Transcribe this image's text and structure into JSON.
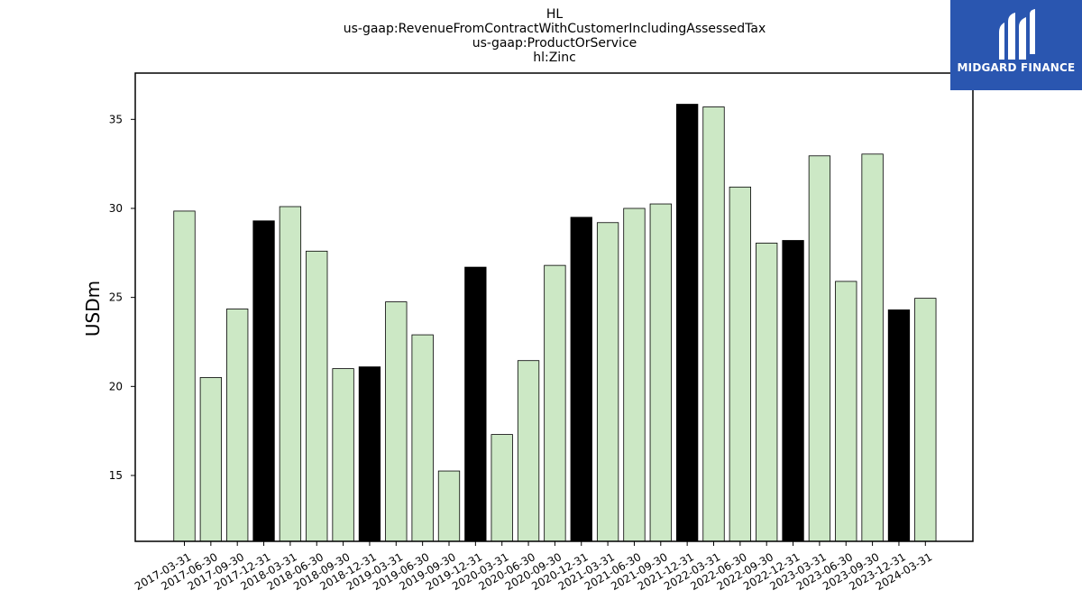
{
  "title_lines": [
    "HL",
    "us-gaap:RevenueFromContractWithCustomerIncludingAssessedTax",
    "us-gaap:ProductOrService",
    "hl:Zinc"
  ],
  "logo": {
    "text": "MIDGARD FINANCE",
    "background": "#2a56b0"
  },
  "chart_data": {
    "type": "bar",
    "title": "HL\nus-gaap:RevenueFromContractWithCustomerIncludingAssessedTax\nus-gaap:ProductOrService\nhl:Zinc",
    "xlabel": "",
    "ylabel": "USDm",
    "ylim": [
      11.3,
      37.6
    ],
    "yticks": [
      15,
      20,
      25,
      30,
      35
    ],
    "grid": false,
    "categories": [
      "2017-03-31",
      "2017-06-30",
      "2017-09-30",
      "2017-12-31",
      "2018-03-31",
      "2018-06-30",
      "2018-09-30",
      "2018-12-31",
      "2019-03-31",
      "2019-06-30",
      "2019-09-30",
      "2019-12-31",
      "2020-03-31",
      "2020-06-30",
      "2020-09-30",
      "2020-12-31",
      "2021-03-31",
      "2021-06-30",
      "2021-09-30",
      "2021-12-31",
      "2022-03-31",
      "2022-06-30",
      "2022-09-30",
      "2022-12-31",
      "2023-03-31",
      "2023-06-30",
      "2023-09-30",
      "2023-12-31",
      "2024-03-31"
    ],
    "values": [
      29.85,
      20.5,
      24.35,
      29.3,
      30.1,
      27.6,
      21.0,
      21.1,
      24.75,
      22.9,
      15.25,
      26.7,
      17.3,
      21.45,
      26.8,
      29.5,
      29.2,
      30.0,
      30.25,
      35.85,
      35.7,
      31.2,
      28.05,
      28.2,
      32.95,
      25.9,
      33.05,
      24.3,
      24.95
    ],
    "bar_colors": {
      "quarter": "#cce8c5",
      "year_end": "#000000",
      "edge": "#000000"
    }
  }
}
